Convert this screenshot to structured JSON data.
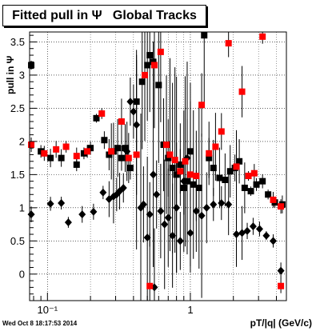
{
  "title": "Fitted pull in Ψ   Global Tracks",
  "footer_timestamp": "Wed Oct  8 18:17:53 2014",
  "chart_data": {
    "type": "scatter",
    "title": "Fitted pull in Ψ   Global Tracks",
    "xlabel": "pT/|q| (GeV/c)",
    "ylabel": "pull in Ψ",
    "xscale": "log",
    "xlim": [
      0.075,
      4.7
    ],
    "ylim": [
      -0.4,
      3.65
    ],
    "xticks": [
      {
        "v": 0.1,
        "label": "10⁻¹"
      },
      {
        "v": 1,
        "label": "1"
      }
    ],
    "yticks": [
      0,
      0.5,
      1,
      1.5,
      2,
      2.5,
      3,
      3.5
    ],
    "grid": true,
    "legend": "none",
    "series": [
      {
        "marker": "diamond",
        "color": "#000000",
        "points": [
          [
            0.077,
            0.9
          ],
          [
            0.105,
            1.06
          ],
          [
            0.125,
            1.07
          ],
          [
            0.14,
            0.78
          ],
          [
            0.175,
            0.9
          ],
          [
            0.21,
            0.94
          ],
          [
            0.245,
            1.23
          ],
          [
            0.27,
            1.13
          ],
          [
            0.29,
            1.17
          ],
          [
            0.305,
            1.2
          ],
          [
            0.32,
            1.25
          ],
          [
            0.34,
            1.3
          ],
          [
            0.36,
            1.85
          ],
          [
            0.38,
            2.6
          ],
          [
            0.4,
            2.45
          ],
          [
            0.42,
            2.25
          ],
          [
            0.45,
            1.0
          ],
          [
            0.47,
            1.05
          ],
          [
            0.5,
            0.55
          ],
          [
            0.52,
            0.9
          ],
          [
            0.55,
            1.5
          ],
          [
            0.58,
            1.2
          ],
          [
            0.62,
            0.95
          ],
          [
            0.66,
            0.75
          ],
          [
            0.7,
            0.85
          ],
          [
            0.75,
            0.58
          ],
          [
            0.8,
            1.0
          ],
          [
            0.85,
            0.5
          ],
          [
            0.9,
            1.4
          ],
          [
            0.95,
            1.75
          ],
          [
            1.0,
            0.62
          ],
          [
            1.1,
            0.95
          ],
          [
            1.2,
            0.88
          ],
          [
            1.3,
            1.0
          ],
          [
            1.45,
            1.05
          ],
          [
            1.65,
            1.07
          ],
          [
            1.85,
            1.05
          ],
          [
            2.1,
            0.6
          ],
          [
            2.3,
            0.62
          ],
          [
            2.5,
            0.65
          ],
          [
            2.75,
            0.72
          ],
          [
            3.05,
            0.68
          ],
          [
            3.4,
            0.58
          ],
          [
            3.8,
            0.5
          ],
          [
            4.3,
            0.05
          ],
          [
            0.56,
            -0.2
          ]
        ]
      },
      {
        "marker": "square",
        "color": "#000000",
        "points": [
          [
            0.077,
            3.15
          ],
          [
            0.09,
            1.85
          ],
          [
            0.105,
            1.75
          ],
          [
            0.125,
            1.75
          ],
          [
            0.16,
            1.65
          ],
          [
            0.18,
            1.82
          ],
          [
            0.2,
            1.9
          ],
          [
            0.22,
            2.35
          ],
          [
            0.25,
            2.02
          ],
          [
            0.27,
            1.8
          ],
          [
            0.29,
            1.85
          ],
          [
            0.31,
            1.9
          ],
          [
            0.33,
            1.75
          ],
          [
            0.35,
            1.9
          ],
          [
            0.38,
            1.6
          ],
          [
            0.42,
            2.6
          ],
          [
            0.46,
            2.9
          ],
          [
            0.5,
            3.15
          ],
          [
            0.52,
            3.3
          ],
          [
            0.55,
            3.2
          ],
          [
            0.6,
            2.85
          ],
          [
            0.65,
            1.95
          ],
          [
            0.7,
            1.75
          ],
          [
            0.75,
            1.6
          ],
          [
            0.8,
            1.5
          ],
          [
            0.85,
            1.65
          ],
          [
            0.9,
            1.3
          ],
          [
            0.95,
            1.4
          ],
          [
            1.0,
            1.85
          ],
          [
            1.05,
            1.35
          ],
          [
            1.15,
            1.3
          ],
          [
            1.25,
            3.6
          ],
          [
            1.35,
            1.75
          ],
          [
            1.45,
            1.6
          ],
          [
            1.6,
            1.45
          ],
          [
            1.75,
            1.42
          ],
          [
            1.9,
            1.55
          ],
          [
            2.05,
            1.6
          ],
          [
            2.2,
            1.7
          ],
          [
            2.4,
            1.3
          ],
          [
            2.65,
            1.25
          ],
          [
            2.9,
            1.35
          ],
          [
            3.2,
            1.4
          ],
          [
            3.5,
            1.2
          ],
          [
            3.9,
            1.08
          ],
          [
            4.4,
            1.05
          ]
        ]
      },
      {
        "marker": "square",
        "color": "#ff0000",
        "points": [
          [
            0.077,
            1.95
          ],
          [
            0.095,
            1.82
          ],
          [
            0.115,
            1.88
          ],
          [
            0.135,
            1.92
          ],
          [
            0.16,
            1.78
          ],
          [
            0.19,
            1.85
          ],
          [
            0.24,
            2.42
          ],
          [
            0.28,
            1.85
          ],
          [
            0.33,
            2.3
          ],
          [
            0.37,
            1.75
          ],
          [
            0.42,
            1.8
          ],
          [
            0.48,
            3.0
          ],
          [
            0.56,
            3.15
          ],
          [
            0.62,
            3.35
          ],
          [
            0.68,
            1.95
          ],
          [
            0.72,
            1.8
          ],
          [
            0.78,
            1.72
          ],
          [
            0.85,
            1.55
          ],
          [
            0.92,
            1.7
          ],
          [
            1.0,
            1.5
          ],
          [
            1.1,
            1.48
          ],
          [
            1.2,
            2.55
          ],
          [
            1.35,
            1.82
          ],
          [
            1.5,
            1.92
          ],
          [
            1.65,
            2.15
          ],
          [
            1.85,
            3.48
          ],
          [
            2.1,
            1.62
          ],
          [
            2.3,
            2.75
          ],
          [
            2.55,
            1.48
          ],
          [
            2.8,
            1.52
          ],
          [
            3.2,
            3.58
          ],
          [
            3.8,
            1.12
          ],
          [
            4.3,
            1.02
          ],
          [
            0.52,
            -0.18
          ],
          [
            4.3,
            -0.18
          ]
        ]
      }
    ]
  }
}
